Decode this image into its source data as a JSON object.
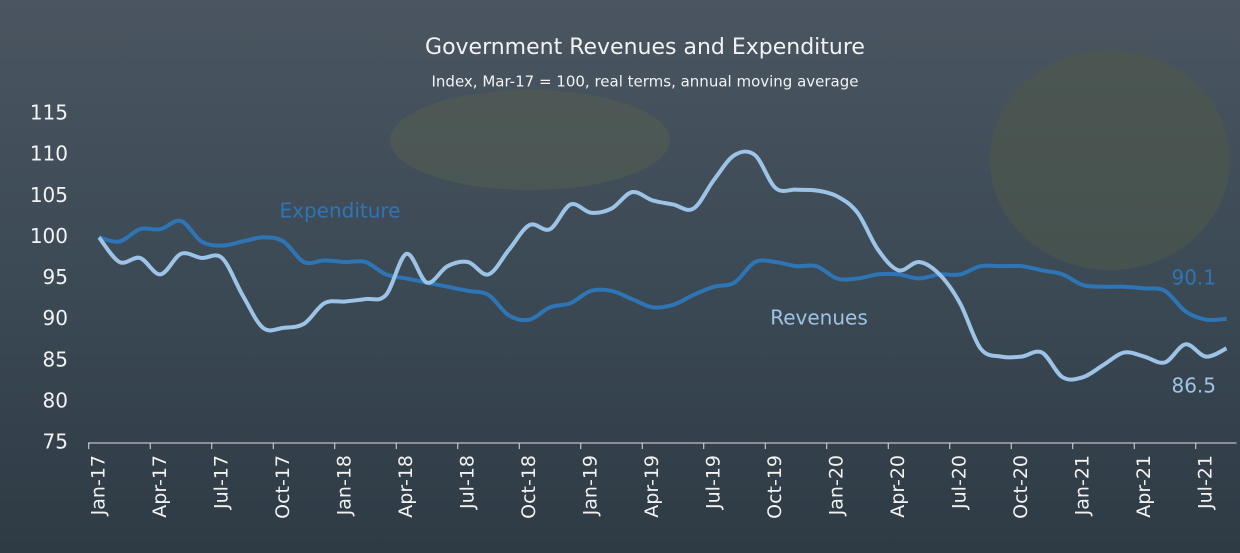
{
  "chart_data": {
    "type": "line",
    "title": "Government Revenues and Expenditure",
    "subtitle": "Index, Mar-17 = 100, real terms, annual moving average",
    "categories": [
      "Jan-17",
      null,
      null,
      "Apr-17",
      null,
      null,
      "Jul-17",
      null,
      null,
      "Oct-17",
      null,
      null,
      "Jan-18",
      null,
      null,
      "Apr-18",
      null,
      null,
      "Jul-18",
      null,
      null,
      "Oct-18",
      null,
      null,
      "Jan-19",
      null,
      null,
      "Apr-19",
      null,
      null,
      "Jul-19",
      null,
      null,
      "Oct-19",
      null,
      null,
      "Jan-20",
      null,
      null,
      "Apr-20",
      null,
      null,
      "Jul-20",
      null,
      null,
      "Oct-20",
      null,
      null,
      "Jan-21",
      null,
      null,
      "Apr-21",
      null,
      null,
      "Jul-21",
      null
    ],
    "series": [
      {
        "name": "Expenditure",
        "color": "#2e75b6",
        "values": [
          100,
          99.5,
          101,
          101,
          102,
          99.5,
          99,
          99.5,
          100,
          99.5,
          97,
          97.2,
          97,
          97,
          95.5,
          95,
          94.5,
          94,
          93.5,
          93,
          90.5,
          90,
          91.5,
          92,
          93.5,
          93.5,
          92.5,
          91.5,
          91.8,
          93,
          94,
          94.5,
          97,
          97,
          96.5,
          96.5,
          95,
          95,
          95.5,
          95.5,
          95,
          95.5,
          95.5,
          96.5,
          96.5,
          96.5,
          96,
          95.5,
          94.2,
          94,
          94,
          93.8,
          93.5,
          91,
          90,
          90.1
        ]
      },
      {
        "name": "Revenues",
        "color": "#9dc3e6",
        "values": [
          100,
          97,
          97.5,
          95.5,
          98,
          97.5,
          97.5,
          93,
          89,
          89,
          89.5,
          92,
          92.2,
          92.5,
          93,
          98,
          94.5,
          96.5,
          97,
          95.5,
          98.5,
          101.5,
          101,
          104,
          103,
          103.5,
          105.5,
          104.5,
          104,
          103.5,
          107,
          110,
          110,
          106,
          105.8,
          105.7,
          105,
          103,
          98.5,
          96,
          97,
          95.5,
          92,
          86.5,
          85.5,
          85.5,
          86,
          83,
          83,
          84.5,
          86,
          85.5,
          84.8,
          87,
          85.5,
          86.5
        ]
      }
    ],
    "end_labels": [
      "90.1",
      "86.5"
    ],
    "ylim": [
      75,
      115
    ],
    "yticks": [
      75,
      80,
      85,
      90,
      95,
      100,
      105,
      110,
      115
    ]
  }
}
